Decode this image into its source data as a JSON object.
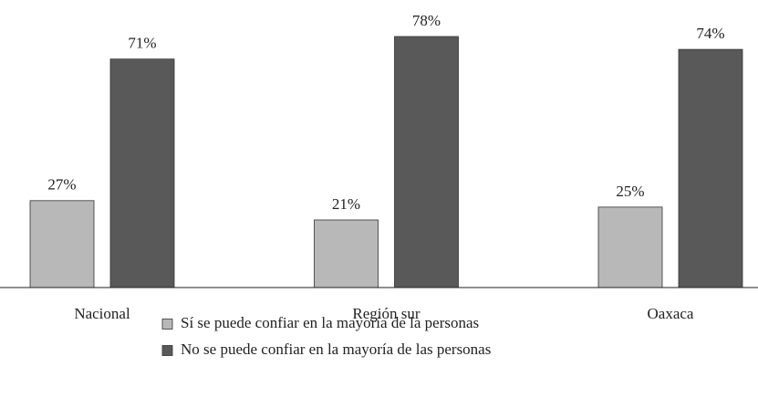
{
  "chart_data": {
    "type": "bar",
    "categories": [
      "Nacional",
      "Región sur",
      "Oaxaca"
    ],
    "series": [
      {
        "name": "Sí se puede confiar en la mayoría de la personas",
        "color": "#b8b8b8",
        "values": [
          27,
          21,
          25
        ],
        "value_labels": [
          "27%",
          "21%",
          "25%"
        ]
      },
      {
        "name": "No se puede confiar en la mayoría de las personas",
        "color": "#595959",
        "values": [
          71,
          78,
          74
        ],
        "value_labels": [
          "71%",
          "78%",
          "74%"
        ]
      }
    ]
  }
}
